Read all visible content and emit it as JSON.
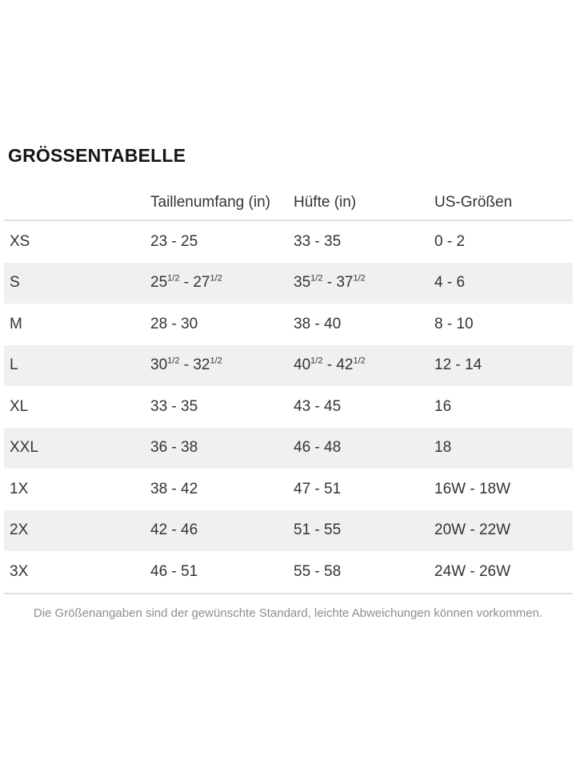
{
  "colors": {
    "stripe": "#f0f0f0",
    "border": "#e0e0e0",
    "text": "#333333",
    "title": "#151515",
    "muted": "#8e8e8e"
  },
  "title": "GRÖSSENTABELLE",
  "table": {
    "headers": {
      "size": "",
      "waist": "Taillenumfang (in)",
      "hip": "Hüfte (in)",
      "us": "US-Größen"
    },
    "rows": [
      {
        "size": "XS",
        "waist": "23 - 25",
        "hip": "33 - 35",
        "us": "0 - 2"
      },
      {
        "size": "S",
        "waist": "25^1/2^ - 27^1/2^",
        "hip": "35^1/2^ - 37^1/2^",
        "us": "4 - 6"
      },
      {
        "size": "M",
        "waist": "28 - 30",
        "hip": "38 - 40",
        "us": "8 - 10"
      },
      {
        "size": "L",
        "waist": "30^1/2^ - 32^1/2^",
        "hip": "40^1/2^ - 42^1/2^",
        "us": "12 - 14"
      },
      {
        "size": "XL",
        "waist": "33 - 35",
        "hip": "43 - 45",
        "us": "16"
      },
      {
        "size": "XXL",
        "waist": "36 - 38",
        "hip": "46 - 48",
        "us": "18"
      },
      {
        "size": "1X",
        "waist": "38 - 42",
        "hip": "47 - 51",
        "us": "16W - 18W"
      },
      {
        "size": "2X",
        "waist": "42 - 46",
        "hip": "51 - 55",
        "us": "20W - 22W"
      },
      {
        "size": "3X",
        "waist": "46 - 51",
        "hip": "55 - 58",
        "us": "24W - 26W"
      }
    ]
  },
  "footer": {
    "note": "Die Größenangaben sind der gewünschte Standard, leichte Abweichungen können vorkommen."
  }
}
